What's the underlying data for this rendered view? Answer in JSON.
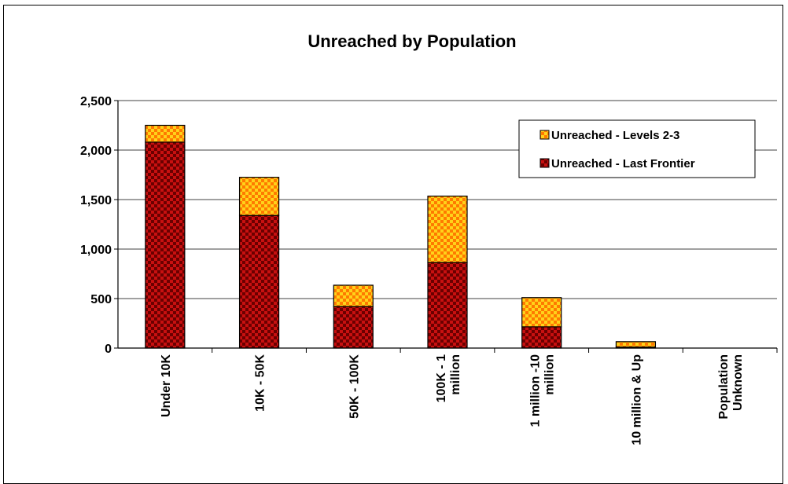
{
  "chart_data": {
    "type": "bar",
    "stacked": true,
    "title": "Unreached by Population",
    "xlabel": "",
    "ylabel": "",
    "categories": [
      [
        "Under 10K"
      ],
      [
        "10K - 50K"
      ],
      [
        "50K - 100K"
      ],
      [
        "100K - 1",
        "million"
      ],
      [
        "1 million -10",
        "million"
      ],
      [
        "10 million & Up"
      ],
      [
        "Population",
        "Unknown"
      ]
    ],
    "series": [
      {
        "name": "Unreached - Last Frontier",
        "values": [
          2080,
          1340,
          420,
          865,
          215,
          10,
          0
        ],
        "color": "#c81010",
        "pattern": "checker"
      },
      {
        "name": "Unreached - Levels 2-3",
        "values": [
          170,
          385,
          215,
          670,
          295,
          55,
          0
        ],
        "color": "#ffcc00",
        "pattern": "checker"
      }
    ],
    "ylim": [
      0,
      2500
    ],
    "yticks": [
      0,
      500,
      1000,
      1500,
      2000,
      2500
    ],
    "ytick_labels": [
      "0",
      "500",
      "1,000",
      "1,500",
      "2,000",
      "2,500"
    ],
    "grid": true,
    "legend": {
      "placement": "top-right",
      "entries": [
        "Unreached - Levels 2-3",
        "Unreached - Last Frontier"
      ]
    }
  }
}
